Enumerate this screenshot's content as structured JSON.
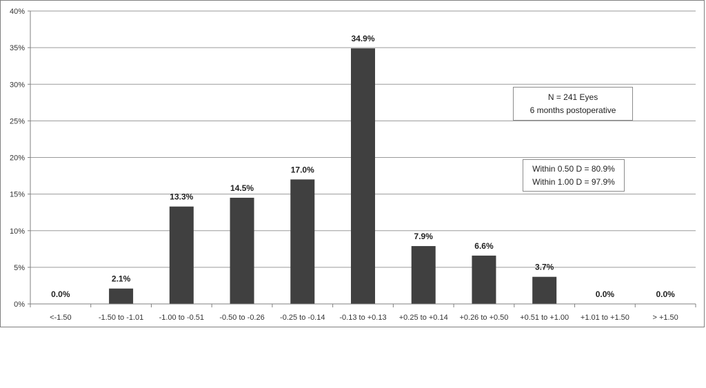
{
  "chart_data": {
    "type": "bar",
    "categories": [
      "<-1.50",
      "-1.50 to -1.01",
      "-1.00 to -0.51",
      "-0.50 to -0.26",
      "-0.25 to -0.14",
      "-0.13 to +0.13",
      "+0.25 to +0.14",
      "+0.26 to +0.50",
      "+0.51 to +1.00",
      "+1.01 to +1.50",
      "> +1.50"
    ],
    "values": [
      0.0,
      2.1,
      13.3,
      14.5,
      17.0,
      34.9,
      7.9,
      6.6,
      3.7,
      0.0,
      0.0
    ],
    "data_labels": [
      "0.0%",
      "2.1%",
      "13.3%",
      "14.5%",
      "17.0%",
      "34.9%",
      "7.9%",
      "6.6%",
      "3.7%",
      "0.0%",
      "0.0%"
    ],
    "ylim": [
      0,
      40
    ],
    "y_ticks": [
      "0%",
      "5%",
      "10%",
      "15%",
      "20%",
      "25%",
      "30%",
      "35%",
      "40%"
    ],
    "grid": true,
    "bar_color": "#404040",
    "annotations": [
      {
        "lines": [
          "N = 241 Eyes",
          "6 months postoperative"
        ]
      },
      {
        "lines": [
          "Within 0.50 D = 80.9%",
          "Within 1.00 D = 97.9%"
        ]
      }
    ]
  }
}
